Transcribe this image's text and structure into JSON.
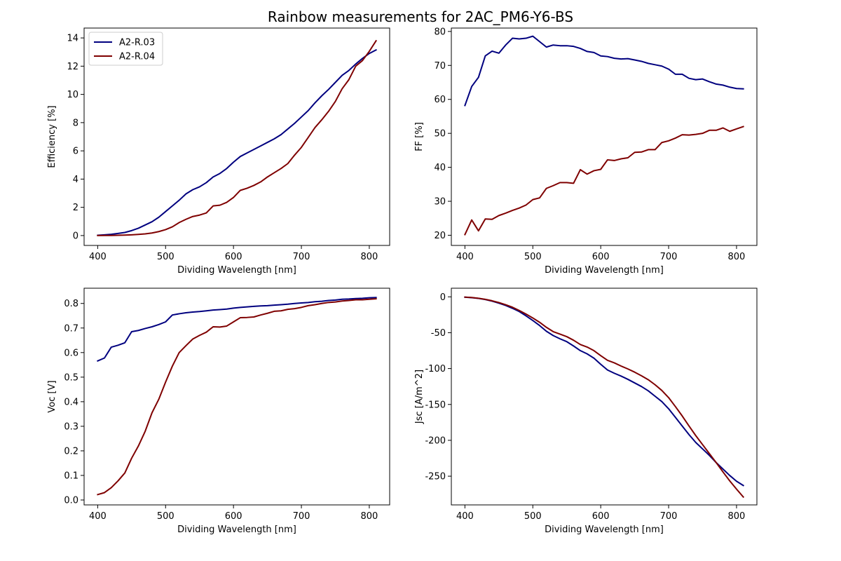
{
  "figure": {
    "title": "Rainbow measurements for 2AC_PM6-Y6-BS"
  },
  "chart_data": [
    {
      "type": "line",
      "xlabel": "Dividing Wavelength [nm]",
      "ylabel": "Efficiency [%]",
      "xlim": [
        380,
        830
      ],
      "ylim": [
        -0.7,
        14.7
      ],
      "xticks": [
        400,
        500,
        600,
        700,
        800
      ],
      "yticks": [
        0,
        2,
        4,
        6,
        8,
        10,
        12,
        14
      ],
      "grid": false,
      "legend": "top-left",
      "x": [
        400,
        410,
        420,
        430,
        440,
        450,
        460,
        470,
        480,
        490,
        500,
        510,
        520,
        530,
        540,
        550,
        560,
        570,
        580,
        590,
        600,
        610,
        620,
        630,
        640,
        650,
        660,
        670,
        680,
        690,
        700,
        710,
        720,
        730,
        740,
        750,
        760,
        770,
        780,
        790,
        800,
        810
      ],
      "series": [
        {
          "name": "A2-R.03",
          "color": "#00007f",
          "values": [
            0.02,
            0.05,
            0.09,
            0.15,
            0.22,
            0.35,
            0.52,
            0.75,
            0.98,
            1.3,
            1.7,
            2.1,
            2.5,
            2.95,
            3.25,
            3.45,
            3.75,
            4.15,
            4.4,
            4.75,
            5.2,
            5.6,
            5.85,
            6.1,
            6.35,
            6.6,
            6.85,
            7.15,
            7.55,
            7.95,
            8.4,
            8.85,
            9.4,
            9.9,
            10.35,
            10.85,
            11.35,
            11.7,
            12.15,
            12.55,
            12.9,
            13.15
          ]
        },
        {
          "name": "A2-R.04",
          "color": "#7f0000",
          "values": [
            0.0,
            0.01,
            0.01,
            0.02,
            0.03,
            0.05,
            0.08,
            0.12,
            0.18,
            0.28,
            0.42,
            0.62,
            0.92,
            1.15,
            1.35,
            1.45,
            1.6,
            2.1,
            2.15,
            2.35,
            2.7,
            3.2,
            3.35,
            3.55,
            3.8,
            4.15,
            4.45,
            4.75,
            5.1,
            5.7,
            6.25,
            6.95,
            7.65,
            8.2,
            8.8,
            9.5,
            10.4,
            11.05,
            12.0,
            12.4,
            13.05,
            13.8
          ]
        }
      ]
    },
    {
      "type": "line",
      "xlabel": "Dividing Wavelength [nm]",
      "ylabel": "FF [%]",
      "xlim": [
        380,
        830
      ],
      "ylim": [
        17.0,
        81.0
      ],
      "xticks": [
        400,
        500,
        600,
        700,
        800
      ],
      "yticks": [
        20,
        30,
        40,
        50,
        60,
        70,
        80
      ],
      "grid": false,
      "x": [
        400,
        410,
        420,
        430,
        440,
        450,
        460,
        470,
        480,
        490,
        500,
        510,
        520,
        530,
        540,
        550,
        560,
        570,
        580,
        590,
        600,
        610,
        620,
        630,
        640,
        650,
        660,
        670,
        680,
        690,
        700,
        710,
        720,
        730,
        740,
        750,
        760,
        770,
        780,
        790,
        800,
        810
      ],
      "series": [
        {
          "name": "A2-R.03",
          "color": "#00007f",
          "values": [
            58.2,
            63.8,
            66.5,
            72.8,
            74.2,
            73.6,
            76.0,
            78.0,
            77.8,
            78.0,
            78.6,
            77.0,
            75.4,
            76.0,
            75.8,
            75.8,
            75.6,
            75.0,
            74.1,
            73.8,
            72.8,
            72.6,
            72.1,
            71.9,
            72.0,
            71.6,
            71.2,
            70.6,
            70.2,
            69.8,
            68.9,
            67.4,
            67.4,
            66.2,
            65.8,
            66.0,
            65.2,
            64.5,
            64.2,
            63.6,
            63.2,
            63.1
          ]
        },
        {
          "name": "A2-R.04",
          "color": "#7f0000",
          "values": [
            20.2,
            24.5,
            21.3,
            24.8,
            24.7,
            25.8,
            26.5,
            27.3,
            28.0,
            28.9,
            30.5,
            31.0,
            33.8,
            34.6,
            35.5,
            35.5,
            35.3,
            39.3,
            38.0,
            39.0,
            39.4,
            42.2,
            42.0,
            42.5,
            42.8,
            44.4,
            44.5,
            45.2,
            45.2,
            47.3,
            47.8,
            48.6,
            49.6,
            49.5,
            49.7,
            50.0,
            50.9,
            50.9,
            51.6,
            50.6,
            51.3,
            52.0
          ]
        }
      ]
    },
    {
      "type": "line",
      "xlabel": "Dividing Wavelength [nm]",
      "ylabel": "Voc [V]",
      "xlim": [
        380,
        830
      ],
      "ylim": [
        -0.02,
        0.862
      ],
      "xticks": [
        400,
        500,
        600,
        700,
        800
      ],
      "yticks": [
        0.0,
        0.1,
        0.2,
        0.3,
        0.4,
        0.5,
        0.6,
        0.7,
        0.8
      ],
      "grid": false,
      "x": [
        400,
        410,
        420,
        430,
        440,
        450,
        460,
        470,
        480,
        490,
        500,
        510,
        520,
        530,
        540,
        550,
        560,
        570,
        580,
        590,
        600,
        610,
        620,
        630,
        640,
        650,
        660,
        670,
        680,
        690,
        700,
        710,
        720,
        730,
        740,
        750,
        760,
        770,
        780,
        790,
        800,
        810
      ],
      "series": [
        {
          "name": "A2-R.03",
          "color": "#00007f",
          "values": [
            0.566,
            0.578,
            0.622,
            0.63,
            0.64,
            0.685,
            0.69,
            0.698,
            0.705,
            0.714,
            0.725,
            0.753,
            0.758,
            0.762,
            0.765,
            0.767,
            0.77,
            0.773,
            0.775,
            0.777,
            0.781,
            0.784,
            0.786,
            0.788,
            0.79,
            0.791,
            0.793,
            0.795,
            0.797,
            0.8,
            0.802,
            0.804,
            0.807,
            0.809,
            0.812,
            0.814,
            0.817,
            0.818,
            0.82,
            0.821,
            0.823,
            0.824
          ]
        },
        {
          "name": "A2-R.04",
          "color": "#7f0000",
          "values": [
            0.022,
            0.03,
            0.05,
            0.078,
            0.11,
            0.17,
            0.22,
            0.28,
            0.355,
            0.41,
            0.48,
            0.545,
            0.6,
            0.628,
            0.655,
            0.67,
            0.683,
            0.705,
            0.704,
            0.708,
            0.725,
            0.742,
            0.743,
            0.745,
            0.753,
            0.76,
            0.768,
            0.77,
            0.776,
            0.779,
            0.784,
            0.791,
            0.795,
            0.8,
            0.804,
            0.806,
            0.81,
            0.812,
            0.815,
            0.815,
            0.817,
            0.819
          ]
        }
      ]
    },
    {
      "type": "line",
      "xlabel": "Dividing Wavelength [nm]",
      "ylabel": "Jsc [A/m^2]",
      "xlim": [
        380,
        830
      ],
      "ylim": [
        -290.0,
        12.0
      ],
      "xticks": [
        400,
        500,
        600,
        700,
        800
      ],
      "yticks": [
        0,
        -50,
        -100,
        -150,
        -200,
        -250
      ],
      "grid": false,
      "x": [
        400,
        410,
        420,
        430,
        440,
        450,
        460,
        470,
        480,
        490,
        500,
        510,
        520,
        530,
        540,
        550,
        560,
        570,
        580,
        590,
        600,
        610,
        620,
        630,
        640,
        650,
        660,
        670,
        680,
        690,
        700,
        710,
        720,
        730,
        740,
        750,
        760,
        770,
        780,
        790,
        800,
        810
      ],
      "series": [
        {
          "name": "A2-R.03",
          "color": "#00007f",
          "values": [
            -0.5,
            -1.2,
            -2.2,
            -3.8,
            -6.0,
            -8.8,
            -12.0,
            -16.0,
            -20.5,
            -26.5,
            -33.0,
            -40.0,
            -48.0,
            -54.0,
            -58.5,
            -62.5,
            -68.5,
            -75.0,
            -79.5,
            -85.5,
            -94.0,
            -102.0,
            -106.5,
            -110.5,
            -115.0,
            -120.0,
            -125.0,
            -131.0,
            -138.5,
            -146.0,
            -156.0,
            -168.0,
            -180.0,
            -192.0,
            -203.0,
            -212.0,
            -221.0,
            -231.0,
            -240.0,
            -249.0,
            -257.0,
            -263.0
          ]
        },
        {
          "name": "A2-R.04",
          "color": "#7f0000",
          "values": [
            -0.4,
            -1.0,
            -2.0,
            -3.5,
            -5.5,
            -8.0,
            -11.0,
            -14.5,
            -19.0,
            -24.0,
            -29.5,
            -35.5,
            -42.5,
            -48.5,
            -52.0,
            -55.5,
            -60.5,
            -66.5,
            -70.0,
            -75.0,
            -82.0,
            -88.5,
            -92.0,
            -96.5,
            -100.5,
            -105.0,
            -110.0,
            -115.5,
            -122.5,
            -130.5,
            -140.5,
            -153.0,
            -166.0,
            -180.0,
            -193.5,
            -206.0,
            -218.5,
            -231.0,
            -244.0,
            -256.5,
            -268.0,
            -279.0
          ]
        }
      ]
    }
  ]
}
